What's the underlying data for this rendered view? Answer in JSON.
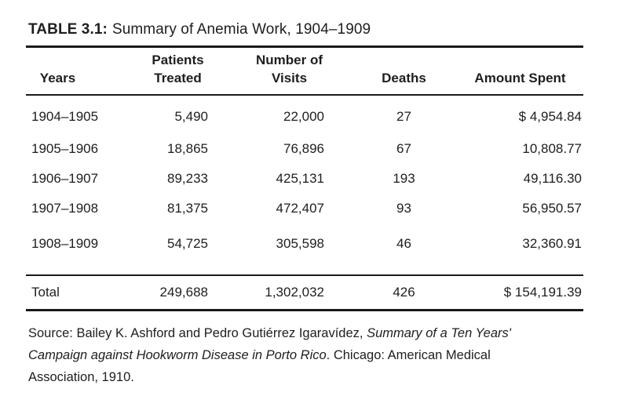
{
  "title": {
    "label": "TABLE 3.1:",
    "text": "Summary of Anemia Work, 1904–1909"
  },
  "table": {
    "columns": [
      {
        "label": "Years"
      },
      {
        "top": "Patients",
        "label": "Treated"
      },
      {
        "top": "Number of",
        "label": "Visits"
      },
      {
        "label": "Deaths"
      },
      {
        "label": "Amount Spent"
      }
    ],
    "rows": [
      {
        "years": "1904–1905",
        "patients": "5,490",
        "visits": "22,000",
        "deaths": "27",
        "amount": "$ 4,954.84"
      },
      {
        "years": "1905–1906",
        "patients": "18,865",
        "visits": "76,896",
        "deaths": "67",
        "amount": "10,808.77"
      },
      {
        "years": "1906–1907",
        "patients": "89,233",
        "visits": "425,131",
        "deaths": "193",
        "amount": "49,116.30"
      },
      {
        "years": "1907–1908",
        "patients": "81,375",
        "visits": "472,407",
        "deaths": "93",
        "amount": "56,950.57"
      },
      {
        "years": "1908–1909",
        "patients": "54,725",
        "visits": "305,598",
        "deaths": "46",
        "amount": "32,360.91"
      }
    ],
    "total": {
      "label": "Total",
      "patients": "249,688",
      "visits": "1,302,032",
      "deaths": "426",
      "amount": "$ 154,191.39"
    }
  },
  "source": {
    "line1_roman": "Source: Bailey K. Ashford and Pedro Gutiérrez Igaravídez, ",
    "line1_italic": "Summary of a Ten Years'",
    "line2_italic": "Campaign against Hookworm Disease in Porto Rico",
    "line2_roman": ". Chicago: American Medical",
    "line3_roman": "Association, 1910."
  },
  "colors": {
    "text": "#1e1e1e",
    "rule": "#1a1a1a",
    "background": "#ffffff"
  }
}
